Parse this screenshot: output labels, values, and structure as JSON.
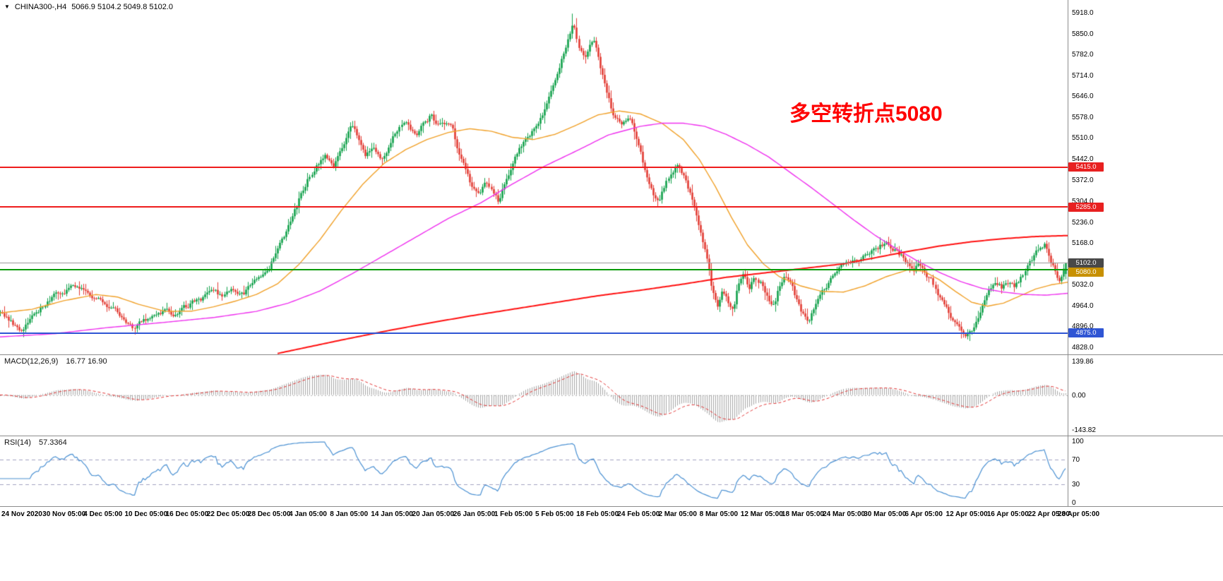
{
  "header": {
    "collapse_icon": "▼",
    "symbol_timeframe": "CHINA300-,H4",
    "ohlc": "5066.9 5104.2 5049.8 5102.0"
  },
  "annotation": {
    "text": "多空转折点5080",
    "color": "#ff0000"
  },
  "chart_data": {
    "type": "candlestick",
    "symbol": "CHINA300-",
    "timeframe": "H4",
    "n_candles": 500,
    "y_axis": {
      "min": 4828,
      "max": 5918,
      "ticks": [
        {
          "v": 5918,
          "label": "5918.0"
        },
        {
          "v": 5850,
          "label": "5850.0"
        },
        {
          "v": 5782,
          "label": "5782.0"
        },
        {
          "v": 5714,
          "label": "5714.0"
        },
        {
          "v": 5646,
          "label": "5646.0"
        },
        {
          "v": 5578,
          "label": "5578.0"
        },
        {
          "v": 5510,
          "label": "5510.0"
        },
        {
          "v": 5442,
          "label": "5442.0"
        },
        {
          "v": 5372,
          "label": "5372.0"
        },
        {
          "v": 5304,
          "label": "5304.0"
        },
        {
          "v": 5236,
          "label": "5236.0"
        },
        {
          "v": 5168,
          "label": "5168.0"
        },
        {
          "v": 5032,
          "label": "5032.0"
        },
        {
          "v": 4964,
          "label": "4964.0"
        },
        {
          "v": 4896,
          "label": "4896.0"
        },
        {
          "v": 4828,
          "label": "4828.0"
        }
      ]
    },
    "x_axis": {
      "labels": [
        "24 Nov 2020",
        "30 Nov 05:00",
        "4 Dec 05:00",
        "10 Dec 05:00",
        "16 Dec 05:00",
        "22 Dec 05:00",
        "28 Dec 05:00",
        "4 Jan 05:00",
        "8 Jan 05:00",
        "14 Jan 05:00",
        "20 Jan 05:00",
        "26 Jan 05:00",
        "1 Feb 05:00",
        "5 Feb 05:00",
        "18 Feb 05:00",
        "24 Feb 05:00",
        "2 Mar 05:00",
        "8 Mar 05:00",
        "12 Mar 05:00",
        "18 Mar 05:00",
        "24 Mar 05:00",
        "30 Mar 05:00",
        "6 Apr 05:00",
        "12 Apr 05:00",
        "16 Apr 05:00",
        "22 Apr 05:00",
        "28 Apr 05:00"
      ]
    },
    "last_candle": {
      "open": 5066.9,
      "high": 5104.2,
      "low": 5049.8,
      "close": 5102.0
    },
    "levels": [
      {
        "name": "resistance-5415",
        "price": 5415,
        "label": "5415.0",
        "line_color": "#ee1c1c",
        "line_width": 2,
        "badge_bg": "#e82020"
      },
      {
        "name": "resistance-5285",
        "price": 5285,
        "label": "5285.0",
        "line_color": "#ee1c1c",
        "line_width": 2,
        "badge_bg": "#e82020"
      },
      {
        "name": "current-price-5102",
        "price": 5102,
        "label": "5102.0",
        "line_color": "#9a9a9a",
        "line_width": 1,
        "badge_bg": "#484848"
      },
      {
        "name": "pivot-5080",
        "price": 5080,
        "label": "5080.0",
        "line_color": "#0a9a0a",
        "line_width": 2,
        "badge_bg": "#c79000"
      },
      {
        "name": "support-4875",
        "price": 4875,
        "label": "4875.0",
        "line_color": "#2f55d4",
        "line_width": 2,
        "badge_bg": "#2f55d4"
      }
    ],
    "price_keyframes": [
      [
        0,
        4950
      ],
      [
        0.013,
        4898
      ],
      [
        0.02,
        4880
      ],
      [
        0.03,
        4925
      ],
      [
        0.05,
        5000
      ],
      [
        0.065,
        5022
      ],
      [
        0.075,
        5012
      ],
      [
        0.09,
        4988
      ],
      [
        0.105,
        4958
      ],
      [
        0.118,
        4912
      ],
      [
        0.124,
        4888
      ],
      [
        0.132,
        4915
      ],
      [
        0.142,
        4930
      ],
      [
        0.155,
        4945
      ],
      [
        0.165,
        4934
      ],
      [
        0.175,
        4962
      ],
      [
        0.19,
        4990
      ],
      [
        0.2,
        5006
      ],
      [
        0.21,
        4996
      ],
      [
        0.218,
        5012
      ],
      [
        0.228,
        4996
      ],
      [
        0.235,
        5030
      ],
      [
        0.245,
        5058
      ],
      [
        0.252,
        5088
      ],
      [
        0.26,
        5140
      ],
      [
        0.268,
        5198
      ],
      [
        0.275,
        5258
      ],
      [
        0.283,
        5330
      ],
      [
        0.29,
        5388
      ],
      [
        0.298,
        5428
      ],
      [
        0.305,
        5465
      ],
      [
        0.312,
        5420
      ],
      [
        0.318,
        5452
      ],
      [
        0.325,
        5520
      ],
      [
        0.33,
        5558
      ],
      [
        0.336,
        5508
      ],
      [
        0.342,
        5452
      ],
      [
        0.35,
        5470
      ],
      [
        0.357,
        5438
      ],
      [
        0.362,
        5460
      ],
      [
        0.368,
        5508
      ],
      [
        0.375,
        5538
      ],
      [
        0.382,
        5558
      ],
      [
        0.39,
        5520
      ],
      [
        0.397,
        5558
      ],
      [
        0.404,
        5582
      ],
      [
        0.41,
        5545
      ],
      [
        0.417,
        5560
      ],
      [
        0.424,
        5538
      ],
      [
        0.43,
        5470
      ],
      [
        0.436,
        5410
      ],
      [
        0.443,
        5352
      ],
      [
        0.45,
        5322
      ],
      [
        0.455,
        5360
      ],
      [
        0.462,
        5330
      ],
      [
        0.468,
        5302
      ],
      [
        0.475,
        5378
      ],
      [
        0.482,
        5438
      ],
      [
        0.49,
        5488
      ],
      [
        0.497,
        5518
      ],
      [
        0.505,
        5558
      ],
      [
        0.512,
        5608
      ],
      [
        0.52,
        5678
      ],
      [
        0.527,
        5758
      ],
      [
        0.533,
        5828
      ],
      [
        0.538,
        5888
      ],
      [
        0.543,
        5798
      ],
      [
        0.548,
        5768
      ],
      [
        0.553,
        5818
      ],
      [
        0.558,
        5838
      ],
      [
        0.563,
        5738
      ],
      [
        0.568,
        5678
      ],
      [
        0.573,
        5608
      ],
      [
        0.578,
        5568
      ],
      [
        0.585,
        5558
      ],
      [
        0.59,
        5578
      ],
      [
        0.595,
        5538
      ],
      [
        0.6,
        5468
      ],
      [
        0.606,
        5398
      ],
      [
        0.612,
        5338
      ],
      [
        0.618,
        5302
      ],
      [
        0.624,
        5358
      ],
      [
        0.63,
        5398
      ],
      [
        0.636,
        5428
      ],
      [
        0.641,
        5388
      ],
      [
        0.647,
        5328
      ],
      [
        0.652,
        5268
      ],
      [
        0.658,
        5198
      ],
      [
        0.663,
        5118
      ],
      [
        0.668,
        5018
      ],
      [
        0.673,
        4962
      ],
      [
        0.678,
        5028
      ],
      [
        0.683,
        4982
      ],
      [
        0.688,
        4952
      ],
      [
        0.693,
        5038
      ],
      [
        0.698,
        5078
      ],
      [
        0.703,
        5028
      ],
      [
        0.708,
        5058
      ],
      [
        0.714,
        5038
      ],
      [
        0.72,
        4995
      ],
      [
        0.726,
        4962
      ],
      [
        0.731,
        5028
      ],
      [
        0.736,
        5068
      ],
      [
        0.741,
        5038
      ],
      [
        0.747,
        4988
      ],
      [
        0.753,
        4940
      ],
      [
        0.758,
        4906
      ],
      [
        0.764,
        4952
      ],
      [
        0.77,
        4998
      ],
      [
        0.776,
        5032
      ],
      [
        0.79,
        5088
      ],
      [
        0.8,
        5112
      ],
      [
        0.815,
        5132
      ],
      [
        0.83,
        5168
      ],
      [
        0.84,
        5148
      ],
      [
        0.85,
        5112
      ],
      [
        0.857,
        5082
      ],
      [
        0.862,
        5098
      ],
      [
        0.868,
        5072
      ],
      [
        0.874,
        5048
      ],
      [
        0.879,
        5012
      ],
      [
        0.885,
        4972
      ],
      [
        0.892,
        4932
      ],
      [
        0.899,
        4898
      ],
      [
        0.906,
        4872
      ],
      [
        0.913,
        4888
      ],
      [
        0.92,
        4940
      ],
      [
        0.927,
        5002
      ],
      [
        0.934,
        5038
      ],
      [
        0.94,
        5022
      ],
      [
        0.946,
        5042
      ],
      [
        0.952,
        5028
      ],
      [
        0.958,
        5055
      ],
      [
        0.964,
        5092
      ],
      [
        0.97,
        5128
      ],
      [
        0.975,
        5158
      ],
      [
        0.98,
        5168
      ],
      [
        0.985,
        5122
      ],
      [
        0.99,
        5072
      ],
      [
        0.994,
        5042
      ],
      [
        1,
        5102
      ]
    ],
    "moving_averages": [
      {
        "name": "ma-fast",
        "color": "#f0a028",
        "width": 1.4,
        "points": [
          [
            0,
            4940
          ],
          [
            0.03,
            4952
          ],
          [
            0.06,
            4980
          ],
          [
            0.09,
            5000
          ],
          [
            0.11,
            4992
          ],
          [
            0.13,
            4968
          ],
          [
            0.155,
            4945
          ],
          [
            0.18,
            4946
          ],
          [
            0.2,
            4960
          ],
          [
            0.22,
            4978
          ],
          [
            0.24,
            5000
          ],
          [
            0.26,
            5035
          ],
          [
            0.28,
            5098
          ],
          [
            0.3,
            5180
          ],
          [
            0.32,
            5275
          ],
          [
            0.34,
            5360
          ],
          [
            0.36,
            5428
          ],
          [
            0.38,
            5472
          ],
          [
            0.4,
            5505
          ],
          [
            0.42,
            5528
          ],
          [
            0.44,
            5540
          ],
          [
            0.46,
            5532
          ],
          [
            0.48,
            5512
          ],
          [
            0.5,
            5505
          ],
          [
            0.52,
            5522
          ],
          [
            0.54,
            5552
          ],
          [
            0.56,
            5585
          ],
          [
            0.58,
            5598
          ],
          [
            0.6,
            5588
          ],
          [
            0.62,
            5558
          ],
          [
            0.64,
            5505
          ],
          [
            0.655,
            5440
          ],
          [
            0.67,
            5352
          ],
          [
            0.685,
            5252
          ],
          [
            0.7,
            5162
          ],
          [
            0.715,
            5100
          ],
          [
            0.73,
            5058
          ],
          [
            0.75,
            5028
          ],
          [
            0.77,
            5010
          ],
          [
            0.79,
            5008
          ],
          [
            0.81,
            5028
          ],
          [
            0.83,
            5058
          ],
          [
            0.85,
            5080
          ],
          [
            0.865,
            5076
          ],
          [
            0.88,
            5048
          ],
          [
            0.895,
            5010
          ],
          [
            0.91,
            4975
          ],
          [
            0.925,
            4962
          ],
          [
            0.94,
            4972
          ],
          [
            0.955,
            4995
          ],
          [
            0.97,
            5018
          ],
          [
            0.985,
            5032
          ],
          [
            1,
            5040
          ]
        ]
      },
      {
        "name": "ma-medium",
        "color": "#ee30ee",
        "width": 1.4,
        "points": [
          [
            0,
            4862
          ],
          [
            0.05,
            4872
          ],
          [
            0.1,
            4892
          ],
          [
            0.15,
            4908
          ],
          [
            0.2,
            4925
          ],
          [
            0.24,
            4945
          ],
          [
            0.27,
            4972
          ],
          [
            0.3,
            5012
          ],
          [
            0.33,
            5068
          ],
          [
            0.36,
            5128
          ],
          [
            0.39,
            5188
          ],
          [
            0.42,
            5248
          ],
          [
            0.45,
            5298
          ],
          [
            0.48,
            5360
          ],
          [
            0.51,
            5418
          ],
          [
            0.54,
            5468
          ],
          [
            0.57,
            5520
          ],
          [
            0.6,
            5548
          ],
          [
            0.62,
            5558
          ],
          [
            0.64,
            5558
          ],
          [
            0.66,
            5548
          ],
          [
            0.68,
            5522
          ],
          [
            0.7,
            5488
          ],
          [
            0.72,
            5448
          ],
          [
            0.74,
            5398
          ],
          [
            0.76,
            5348
          ],
          [
            0.78,
            5295
          ],
          [
            0.8,
            5242
          ],
          [
            0.82,
            5192
          ],
          [
            0.84,
            5148
          ],
          [
            0.86,
            5108
          ],
          [
            0.88,
            5072
          ],
          [
            0.9,
            5042
          ],
          [
            0.92,
            5020
          ],
          [
            0.94,
            5008
          ],
          [
            0.96,
            5000
          ],
          [
            0.98,
            4998
          ],
          [
            1,
            5004
          ]
        ]
      },
      {
        "name": "ma-slow",
        "color": "#ff1010",
        "width": 2,
        "points": [
          [
            0.26,
            4808
          ],
          [
            0.29,
            4830
          ],
          [
            0.32,
            4852
          ],
          [
            0.36,
            4880
          ],
          [
            0.4,
            4906
          ],
          [
            0.44,
            4930
          ],
          [
            0.48,
            4952
          ],
          [
            0.52,
            4974
          ],
          [
            0.56,
            4996
          ],
          [
            0.6,
            5014
          ],
          [
            0.64,
            5034
          ],
          [
            0.68,
            5056
          ],
          [
            0.72,
            5072
          ],
          [
            0.76,
            5088
          ],
          [
            0.79,
            5100
          ],
          [
            0.82,
            5120
          ],
          [
            0.85,
            5140
          ],
          [
            0.88,
            5158
          ],
          [
            0.91,
            5172
          ],
          [
            0.94,
            5182
          ],
          [
            0.97,
            5189
          ],
          [
            1,
            5192
          ]
        ]
      }
    ],
    "indicators": {
      "macd": {
        "label": "MACD(12,26,9)",
        "values_text": "16.77 16.90",
        "params": [
          12,
          26,
          9
        ],
        "range": [
          -165,
          165
        ],
        "scale_labels": [
          {
            "v": 139.86,
            "label": "139.86"
          },
          {
            "v": 0,
            "label": "0.00"
          },
          {
            "v": -143.82,
            "label": "-143.82"
          }
        ]
      },
      "rsi": {
        "label": "RSI(14)",
        "value_text": "57.3364",
        "period": 14,
        "levels": [
          70,
          30
        ],
        "scale_labels": [
          {
            "v": 100,
            "label": "100"
          },
          {
            "v": 70,
            "label": "70"
          },
          {
            "v": 30,
            "label": "30"
          },
          {
            "v": 0,
            "label": "0"
          }
        ]
      }
    },
    "colors": {
      "up": "#10a04a",
      "down": "#e23b33",
      "macd_hist": "#a6a6a6",
      "macd_signal": "#e03030",
      "rsi_line": "#4a90d2",
      "rsi_levels": "#a0a0c0",
      "separator": "#8c8c8c",
      "axis_text": "#000000"
    }
  }
}
